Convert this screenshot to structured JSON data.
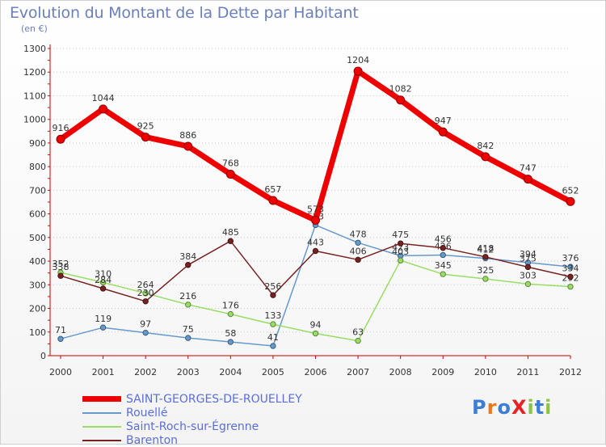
{
  "title": "Evolution du Montant de la Dette par Habitant",
  "subtitle": "(en €)",
  "logo": "ProXiti",
  "chart_data": {
    "type": "line",
    "x": [
      "2000",
      "2001",
      "2002",
      "2003",
      "2004",
      "2005",
      "2006",
      "2007",
      "2008",
      "2009",
      "2010",
      "2011",
      "2012"
    ],
    "ylim": [
      0,
      1300
    ],
    "yticks": [
      0,
      100,
      200,
      300,
      400,
      500,
      600,
      700,
      800,
      900,
      1000,
      1100,
      1200,
      1300
    ],
    "grid": "horizontal-dotted",
    "legend_position": "bottom-left",
    "series": [
      {
        "name": "SAINT-GEORGES-DE-ROUELLEY",
        "color": "#ee0000",
        "values": [
          916,
          1044,
          925,
          886,
          768,
          657,
          573,
          1204,
          1082,
          947,
          842,
          747,
          652
        ]
      },
      {
        "name": "Rouellé",
        "color": "#6699cc",
        "values": [
          71,
          119,
          97,
          75,
          58,
          41,
          553,
          478,
          423,
          426,
          412,
          394,
          376
        ]
      },
      {
        "name": "Saint-Roch-sur-Égrenne",
        "color": "#99dd66",
        "values": [
          352,
          310,
          264,
          216,
          176,
          133,
          94,
          63,
          403,
          345,
          325,
          303,
          292
        ]
      },
      {
        "name": "Barenton",
        "color": "#772222",
        "values": [
          338,
          284,
          230,
          384,
          485,
          256,
          443,
          406,
          475,
          456,
          418,
          375,
          334
        ]
      }
    ]
  }
}
